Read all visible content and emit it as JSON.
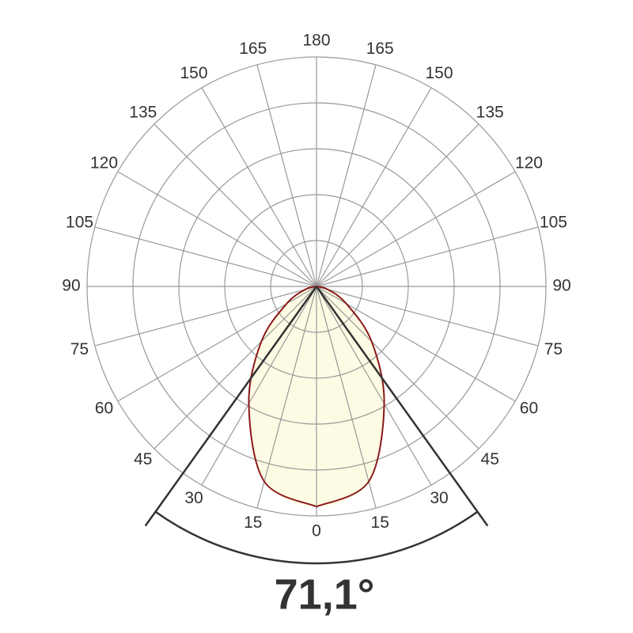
{
  "chart_data": {
    "type": "polar",
    "angle_ticks": [
      0,
      15,
      30,
      45,
      60,
      75,
      90,
      105,
      120,
      135,
      150,
      165,
      180
    ],
    "rlim": [
      0,
      1
    ],
    "rticks": [
      0.2,
      0.4,
      0.6,
      0.8,
      1
    ],
    "grid": true,
    "series": [
      {
        "color": "#8b1a1a",
        "fill": "#fdfbe3",
        "angles": [
          0,
          15,
          30,
          45,
          60,
          75,
          90
        ],
        "values": [
          0.96,
          0.88,
          0.59,
          0.34,
          0.15,
          0.05,
          0
        ]
      }
    ],
    "beam_angle": {
      "value": 71.1,
      "label": "71,1°"
    }
  }
}
